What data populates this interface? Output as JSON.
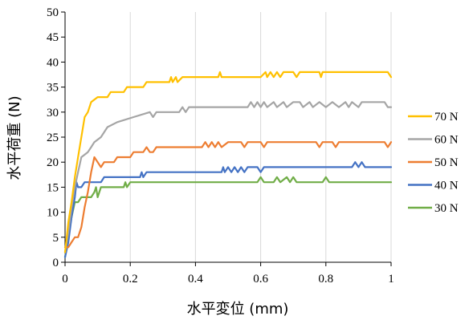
{
  "chart_data": {
    "type": "line",
    "xlabel": "水平変位 (mm)",
    "ylabel": "水平荷重 (N)",
    "xlim": [
      0,
      1
    ],
    "ylim": [
      0,
      50
    ],
    "xticks": [
      0,
      0.2,
      0.4,
      0.6,
      0.8,
      1
    ],
    "xtick_labels": [
      "0",
      "0.2",
      "0.4",
      "0.6",
      "0.8",
      "1"
    ],
    "yticks": [
      0,
      5,
      10,
      15,
      20,
      25,
      30,
      35,
      40,
      45,
      50
    ],
    "ytick_labels": [
      "0",
      "5",
      "10",
      "15",
      "20",
      "25",
      "30",
      "35",
      "40",
      "45",
      "50"
    ],
    "grid": "vertical",
    "legend": "right",
    "series": [
      {
        "name": "70 N",
        "color": "#FFC000",
        "points": [
          [
            0,
            2
          ],
          [
            0.01,
            8
          ],
          [
            0.02,
            12
          ],
          [
            0.03,
            17
          ],
          [
            0.04,
            21
          ],
          [
            0.05,
            25
          ],
          [
            0.06,
            29
          ],
          [
            0.07,
            30
          ],
          [
            0.08,
            32
          ],
          [
            0.1,
            33
          ],
          [
            0.13,
            33
          ],
          [
            0.14,
            34
          ],
          [
            0.18,
            34
          ],
          [
            0.19,
            35
          ],
          [
            0.24,
            35
          ],
          [
            0.25,
            36
          ],
          [
            0.32,
            36
          ],
          [
            0.325,
            37
          ],
          [
            0.33,
            36
          ],
          [
            0.34,
            37
          ],
          [
            0.345,
            36
          ],
          [
            0.36,
            37
          ],
          [
            0.47,
            37
          ],
          [
            0.475,
            38
          ],
          [
            0.48,
            37
          ],
          [
            0.6,
            37
          ],
          [
            0.615,
            38
          ],
          [
            0.62,
            37
          ],
          [
            0.63,
            38
          ],
          [
            0.64,
            37
          ],
          [
            0.65,
            38
          ],
          [
            0.66,
            37
          ],
          [
            0.67,
            38
          ],
          [
            0.7,
            38
          ],
          [
            0.71,
            37
          ],
          [
            0.72,
            38
          ],
          [
            0.78,
            38
          ],
          [
            0.785,
            37
          ],
          [
            0.79,
            38
          ],
          [
            0.99,
            38
          ],
          [
            1,
            37
          ]
        ]
      },
      {
        "name": "60 N",
        "color": "#A5A5A5",
        "points": [
          [
            0,
            2
          ],
          [
            0.01,
            6
          ],
          [
            0.02,
            11
          ],
          [
            0.03,
            15
          ],
          [
            0.04,
            18
          ],
          [
            0.05,
            21
          ],
          [
            0.07,
            22
          ],
          [
            0.08,
            23
          ],
          [
            0.09,
            24
          ],
          [
            0.11,
            25
          ],
          [
            0.13,
            27
          ],
          [
            0.16,
            28
          ],
          [
            0.21,
            29
          ],
          [
            0.26,
            30
          ],
          [
            0.27,
            29
          ],
          [
            0.28,
            30
          ],
          [
            0.35,
            30
          ],
          [
            0.36,
            31
          ],
          [
            0.37,
            30
          ],
          [
            0.38,
            31
          ],
          [
            0.56,
            31
          ],
          [
            0.57,
            32
          ],
          [
            0.58,
            31
          ],
          [
            0.59,
            32
          ],
          [
            0.6,
            31
          ],
          [
            0.61,
            32
          ],
          [
            0.62,
            31
          ],
          [
            0.64,
            32
          ],
          [
            0.65,
            31
          ],
          [
            0.67,
            32
          ],
          [
            0.68,
            31
          ],
          [
            0.7,
            32
          ],
          [
            0.72,
            32
          ],
          [
            0.73,
            31
          ],
          [
            0.75,
            32
          ],
          [
            0.76,
            31
          ],
          [
            0.78,
            32
          ],
          [
            0.8,
            31
          ],
          [
            0.82,
            32
          ],
          [
            0.84,
            31
          ],
          [
            0.86,
            32
          ],
          [
            0.87,
            31
          ],
          [
            0.88,
            32
          ],
          [
            0.9,
            31
          ],
          [
            0.91,
            32
          ],
          [
            0.98,
            32
          ],
          [
            0.99,
            31
          ],
          [
            1,
            31
          ]
        ]
      },
      {
        "name": "50 N",
        "color": "#ED7D31",
        "points": [
          [
            0,
            3
          ],
          [
            0.01,
            3
          ],
          [
            0.02,
            4
          ],
          [
            0.03,
            5
          ],
          [
            0.04,
            5
          ],
          [
            0.05,
            7
          ],
          [
            0.06,
            11
          ],
          [
            0.07,
            14
          ],
          [
            0.08,
            18
          ],
          [
            0.09,
            21
          ],
          [
            0.1,
            20
          ],
          [
            0.11,
            19
          ],
          [
            0.12,
            20
          ],
          [
            0.15,
            20
          ],
          [
            0.16,
            21
          ],
          [
            0.2,
            21
          ],
          [
            0.21,
            22
          ],
          [
            0.24,
            22
          ],
          [
            0.25,
            23
          ],
          [
            0.26,
            22
          ],
          [
            0.27,
            22
          ],
          [
            0.28,
            23
          ],
          [
            0.42,
            23
          ],
          [
            0.43,
            24
          ],
          [
            0.44,
            23
          ],
          [
            0.45,
            24
          ],
          [
            0.46,
            23
          ],
          [
            0.47,
            24
          ],
          [
            0.48,
            23
          ],
          [
            0.5,
            24
          ],
          [
            0.54,
            24
          ],
          [
            0.55,
            23
          ],
          [
            0.56,
            24
          ],
          [
            0.6,
            24
          ],
          [
            0.61,
            23
          ],
          [
            0.62,
            24
          ],
          [
            0.77,
            24
          ],
          [
            0.78,
            23
          ],
          [
            0.79,
            24
          ],
          [
            0.82,
            24
          ],
          [
            0.83,
            23
          ],
          [
            0.84,
            24
          ],
          [
            0.98,
            24
          ],
          [
            0.99,
            23
          ],
          [
            1,
            24
          ]
        ]
      },
      {
        "name": "40 N",
        "color": "#4472C4",
        "points": [
          [
            0,
            1
          ],
          [
            0.01,
            4
          ],
          [
            0.02,
            9
          ],
          [
            0.03,
            13
          ],
          [
            0.035,
            16
          ],
          [
            0.04,
            15
          ],
          [
            0.05,
            15
          ],
          [
            0.06,
            16
          ],
          [
            0.11,
            16
          ],
          [
            0.12,
            17
          ],
          [
            0.23,
            17
          ],
          [
            0.235,
            18
          ],
          [
            0.24,
            17
          ],
          [
            0.25,
            18
          ],
          [
            0.48,
            18
          ],
          [
            0.485,
            19
          ],
          [
            0.49,
            18
          ],
          [
            0.5,
            19
          ],
          [
            0.51,
            18
          ],
          [
            0.52,
            19
          ],
          [
            0.53,
            18
          ],
          [
            0.54,
            19
          ],
          [
            0.55,
            18
          ],
          [
            0.56,
            19
          ],
          [
            0.59,
            19
          ],
          [
            0.6,
            18
          ],
          [
            0.61,
            19
          ],
          [
            0.88,
            19
          ],
          [
            0.89,
            20
          ],
          [
            0.9,
            19
          ],
          [
            0.91,
            20
          ],
          [
            0.92,
            19
          ],
          [
            1,
            19
          ]
        ]
      },
      {
        "name": "30 N",
        "color": "#70AD47",
        "points": [
          [
            0,
            1
          ],
          [
            0.01,
            5
          ],
          [
            0.02,
            9
          ],
          [
            0.03,
            12
          ],
          [
            0.04,
            12
          ],
          [
            0.05,
            13
          ],
          [
            0.08,
            13
          ],
          [
            0.09,
            14
          ],
          [
            0.095,
            15
          ],
          [
            0.1,
            13
          ],
          [
            0.11,
            15
          ],
          [
            0.18,
            15
          ],
          [
            0.185,
            16
          ],
          [
            0.19,
            15
          ],
          [
            0.2,
            16
          ],
          [
            0.59,
            16
          ],
          [
            0.6,
            17
          ],
          [
            0.61,
            16
          ],
          [
            0.64,
            16
          ],
          [
            0.65,
            17
          ],
          [
            0.66,
            16
          ],
          [
            0.68,
            17
          ],
          [
            0.69,
            16
          ],
          [
            0.7,
            17
          ],
          [
            0.71,
            16
          ],
          [
            0.79,
            16
          ],
          [
            0.8,
            17
          ],
          [
            0.81,
            16
          ],
          [
            1,
            16
          ]
        ]
      }
    ]
  }
}
